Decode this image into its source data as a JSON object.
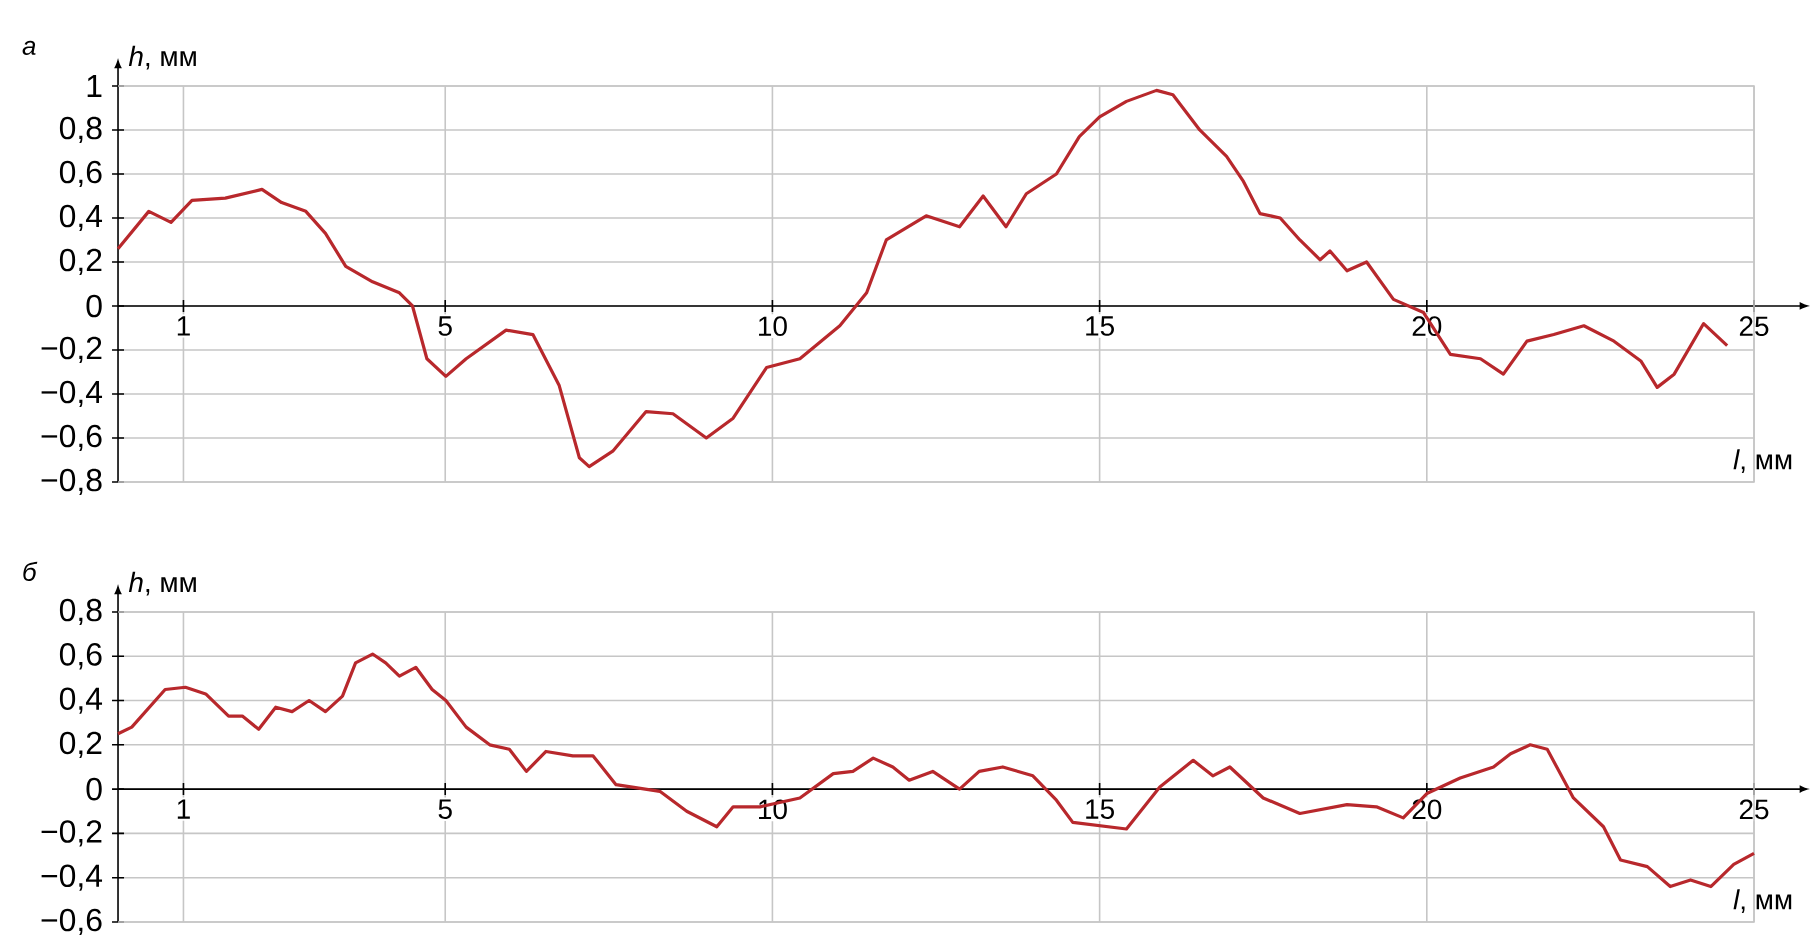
{
  "chart_data": [
    {
      "type": "line",
      "title": "а",
      "xlabel": "*l*, мм",
      "ylabel": "*h*, мм",
      "grid": true,
      "xlim": [
        0,
        25
      ],
      "ylim": [
        -0.8,
        1
      ],
      "xticks": [
        1,
        5,
        10,
        15,
        20,
        25
      ],
      "yticks": [
        {
          "value": -0.8,
          "label": "−0,8"
        },
        {
          "value": -0.6,
          "label": "−0,6"
        },
        {
          "value": -0.4,
          "label": "−0,4"
        },
        {
          "value": -0.2,
          "label": "−0,2"
        },
        0,
        {
          "value": 0.2,
          "label": "0,2"
        },
        {
          "value": 0.4,
          "label": "0,4"
        },
        {
          "value": 0.6,
          "label": "0,6"
        },
        {
          "value": 0.8,
          "label": "0,8"
        },
        1
      ],
      "series": [
        {
          "color": "#b8282c",
          "x": [
            0,
            0.47,
            0.81,
            1.13,
            1.64,
            2.2,
            2.5,
            2.87,
            3.17,
            3.48,
            3.89,
            4.3,
            4.5,
            4.72,
            5.01,
            5.32,
            5.93,
            6.34,
            6.74,
            7.05,
            7.2,
            7.56,
            8.07,
            8.48,
            8.99,
            9.4,
            9.91,
            10.42,
            11.03,
            11.44,
            11.74,
            12.35,
            12.86,
            13.22,
            13.57,
            13.88,
            14.34,
            14.69,
            15,
            15.41,
            15.87,
            16.12,
            16.53,
            16.94,
            17.19,
            17.45,
            17.76,
            18.06,
            18.37,
            18.52,
            18.78,
            19.08,
            19.49,
            19.95,
            20.36,
            20.82,
            21.17,
            21.53,
            21.94,
            22.4,
            22.86,
            23.27,
            23.52,
            23.78,
            24.23,
            24.59
          ],
          "values": [
            0.26,
            0.43,
            0.38,
            0.48,
            0.49,
            0.53,
            0.47,
            0.43,
            0.33,
            0.18,
            0.11,
            0.06,
            0.0,
            -0.24,
            -0.32,
            -0.24,
            -0.11,
            -0.13,
            -0.36,
            -0.69,
            -0.73,
            -0.66,
            -0.48,
            -0.49,
            -0.6,
            -0.51,
            -0.28,
            -0.24,
            -0.09,
            0.06,
            0.3,
            0.41,
            0.36,
            0.5,
            0.36,
            0.51,
            0.6,
            0.77,
            0.86,
            0.93,
            0.98,
            0.96,
            0.8,
            0.68,
            0.57,
            0.42,
            0.4,
            0.3,
            0.21,
            0.25,
            0.16,
            0.2,
            0.03,
            -0.03,
            -0.22,
            -0.24,
            -0.31,
            -0.16,
            -0.13,
            -0.09,
            -0.16,
            -0.25,
            -0.37,
            -0.31,
            -0.08,
            -0.18
          ]
        }
      ]
    },
    {
      "type": "line",
      "title": "б",
      "xlabel": "*l*, мм",
      "ylabel": "*h*, мм",
      "grid": true,
      "xlim": [
        0,
        25
      ],
      "ylim": [
        -0.6,
        0.8
      ],
      "xticks": [
        1,
        5,
        10,
        15,
        20,
        25
      ],
      "yticks": [
        {
          "value": -0.6,
          "label": "−0,6"
        },
        {
          "value": -0.4,
          "label": "−0,4"
        },
        {
          "value": -0.2,
          "label": "−0,2"
        },
        0,
        {
          "value": 0.2,
          "label": "0,2"
        },
        {
          "value": 0.4,
          "label": "0,4"
        },
        {
          "value": 0.6,
          "label": "0,6"
        },
        {
          "value": 0.8,
          "label": "0,8"
        }
      ],
      "series": [
        {
          "color": "#b8282c",
          "x": [
            0,
            0.21,
            0.72,
            1.03,
            1.34,
            1.69,
            1.9,
            2.15,
            2.41,
            2.66,
            2.92,
            3.17,
            3.43,
            3.63,
            3.89,
            4.09,
            4.3,
            4.55,
            4.8,
            5.01,
            5.32,
            5.68,
            5.98,
            6.24,
            6.54,
            6.95,
            7.26,
            7.61,
            8.28,
            8.69,
            9.15,
            9.4,
            9.81,
            10.42,
            10.93,
            11.23,
            11.54,
            11.84,
            12.09,
            12.45,
            12.86,
            13.16,
            13.52,
            13.98,
            14.34,
            14.59,
            15.41,
            15.92,
            16.43,
            16.73,
            16.99,
            17.5,
            18.06,
            18.78,
            19.23,
            19.64,
            20,
            20.51,
            21.02,
            21.28,
            21.58,
            21.84,
            22.24,
            22.7,
            22.96,
            23.37,
            23.72,
            24.03,
            24.34,
            24.69,
            25
          ],
          "values": [
            0.25,
            0.28,
            0.45,
            0.46,
            0.43,
            0.33,
            0.33,
            0.27,
            0.37,
            0.35,
            0.4,
            0.35,
            0.42,
            0.57,
            0.61,
            0.57,
            0.51,
            0.55,
            0.45,
            0.4,
            0.28,
            0.2,
            0.18,
            0.08,
            0.17,
            0.15,
            0.15,
            0.02,
            -0.01,
            -0.1,
            -0.17,
            -0.08,
            -0.08,
            -0.04,
            0.07,
            0.08,
            0.14,
            0.1,
            0.04,
            0.08,
            0.0,
            0.08,
            0.1,
            0.06,
            -0.05,
            -0.15,
            -0.18,
            0.01,
            0.13,
            0.06,
            0.1,
            -0.04,
            -0.11,
            -0.07,
            -0.08,
            -0.13,
            -0.02,
            0.05,
            0.1,
            0.16,
            0.2,
            0.18,
            -0.04,
            -0.17,
            -0.32,
            -0.35,
            -0.44,
            -0.41,
            -0.44,
            -0.34,
            -0.29
          ]
        }
      ]
    }
  ]
}
